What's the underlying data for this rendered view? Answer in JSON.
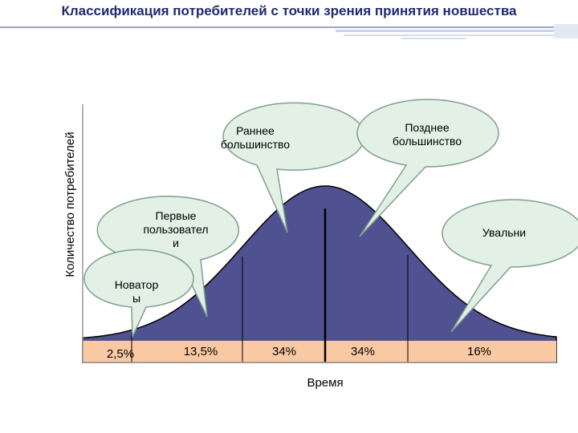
{
  "title": "Классификация потребителей с точки зрения принятия новшества",
  "ylabel": "Количество потребителей",
  "xlabel": "Время",
  "colors": {
    "curve_fill": "#4f5190",
    "percent_band": "#f9c9a4",
    "bubble_fill": "#e2f0e6",
    "bubble_stroke": "#7f9f8f",
    "title_text": "#1f2b6e"
  },
  "bubbles": {
    "innovators": "Новатор\nы",
    "early_adopters": "Первые\nпользовател\nи",
    "early_majority": "Раннее\nбольшинство",
    "late_majority": "Позднее\nбольшинство",
    "laggards": "Увальни"
  },
  "chart_data": {
    "type": "area",
    "title": "Классификация потребителей с точки зрения принятия новшества",
    "xlabel": "Время",
    "ylabel": "Количество потребителей",
    "segments": [
      {
        "label": "Новаторы",
        "percent": "2,5%",
        "value": 2.5
      },
      {
        "label": "Первые пользователи",
        "percent": "13,5%",
        "value": 13.5
      },
      {
        "label": "Раннее большинство",
        "percent": "34%",
        "value": 34
      },
      {
        "label": "Позднее большинство",
        "percent": "34%",
        "value": 34
      },
      {
        "label": "Увальни",
        "percent": "16%",
        "value": 16
      }
    ]
  }
}
